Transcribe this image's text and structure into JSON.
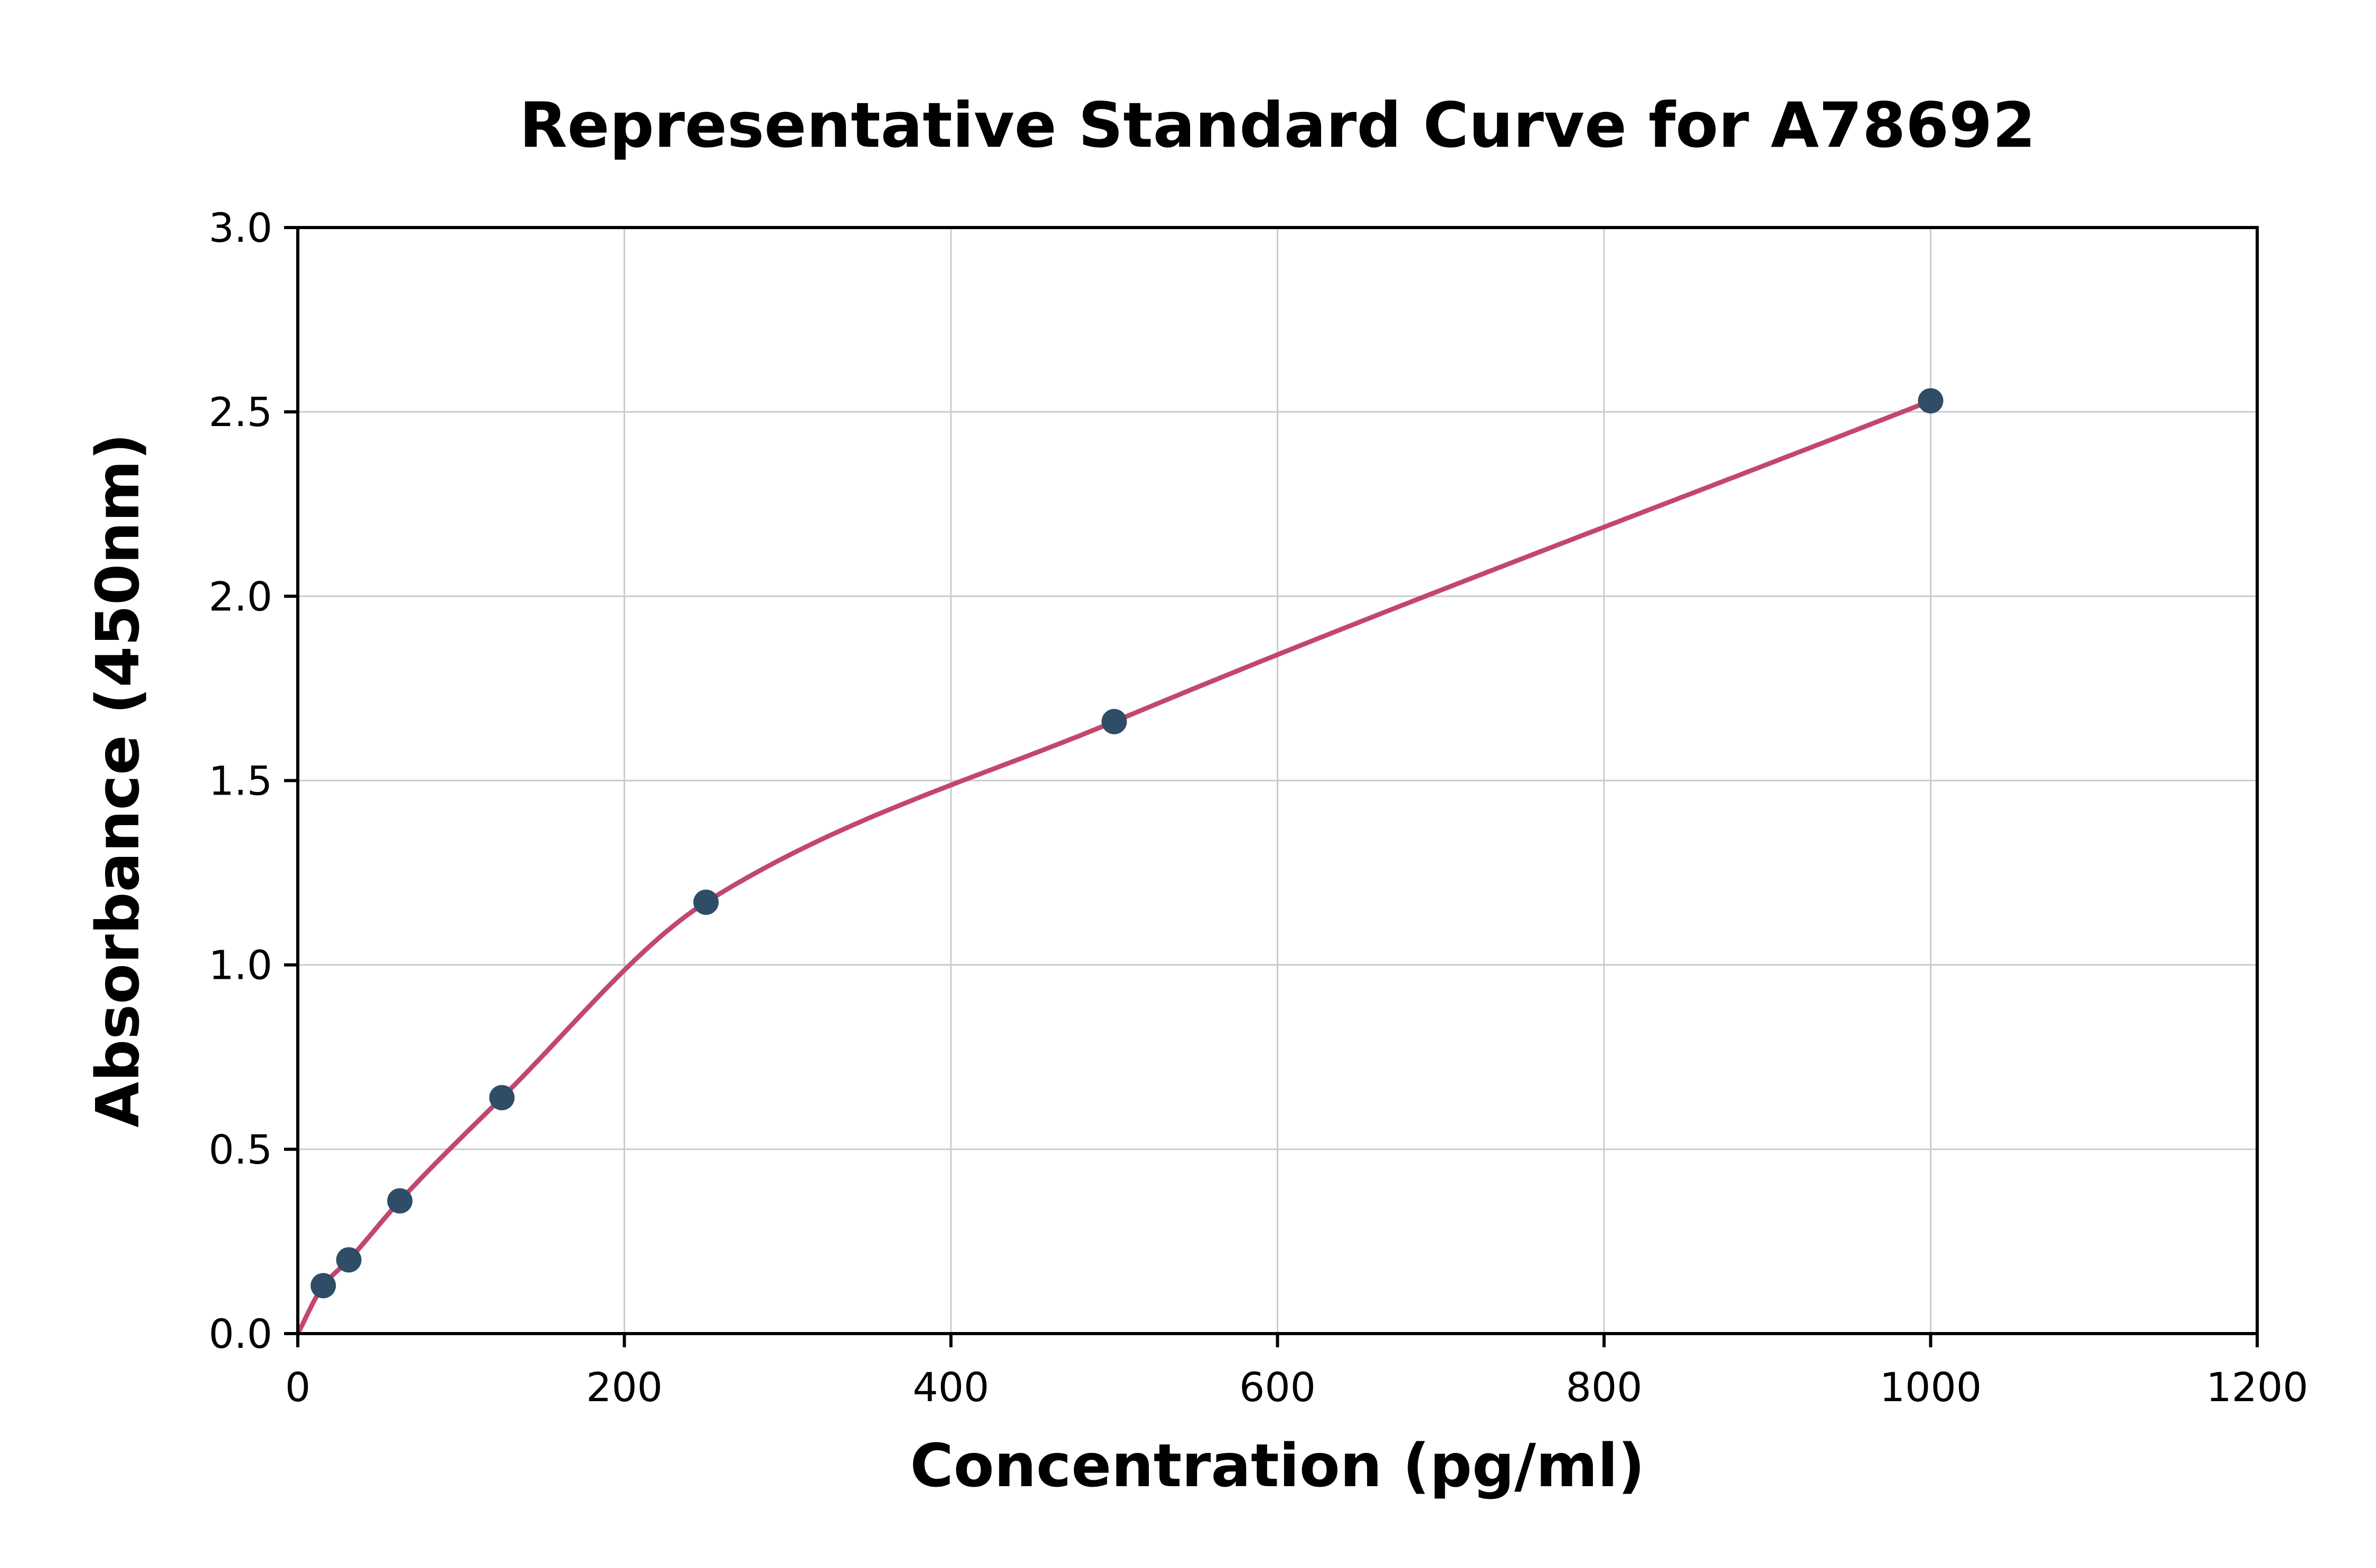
{
  "chart_data": {
    "type": "scatter",
    "title": "Representative Standard Curve for A78692",
    "xlabel": "Concentration (pg/ml)",
    "ylabel": "Absorbance (450nm)",
    "xlim": [
      0,
      1200
    ],
    "ylim": [
      0,
      3.0
    ],
    "x_ticks": {
      "values": [
        0,
        200,
        400,
        600,
        800,
        1000,
        1200
      ],
      "labels": [
        "0",
        "200",
        "400",
        "600",
        "800",
        "1000",
        "1200"
      ]
    },
    "y_ticks": {
      "values": [
        0,
        0.5,
        1.0,
        1.5,
        2.0,
        2.5,
        3.0
      ],
      "labels": [
        "0.0",
        "0.5",
        "1.0",
        "1.5",
        "2.0",
        "2.5",
        "3.0"
      ]
    },
    "grid": true,
    "legend": null,
    "points": [
      {
        "x": 15.6,
        "y": 0.13
      },
      {
        "x": 31.25,
        "y": 0.2
      },
      {
        "x": 62.5,
        "y": 0.36
      },
      {
        "x": 125,
        "y": 0.64
      },
      {
        "x": 250,
        "y": 1.17
      },
      {
        "x": 500,
        "y": 1.66
      },
      {
        "x": 1000,
        "y": 2.53
      }
    ],
    "curve_anchor": {
      "x": 0,
      "y": 0
    },
    "colors": {
      "marker": "#2f4d66",
      "curve": "#c2476f",
      "grid": "#cccccc",
      "axis": "#000000",
      "background": "#ffffff"
    }
  }
}
